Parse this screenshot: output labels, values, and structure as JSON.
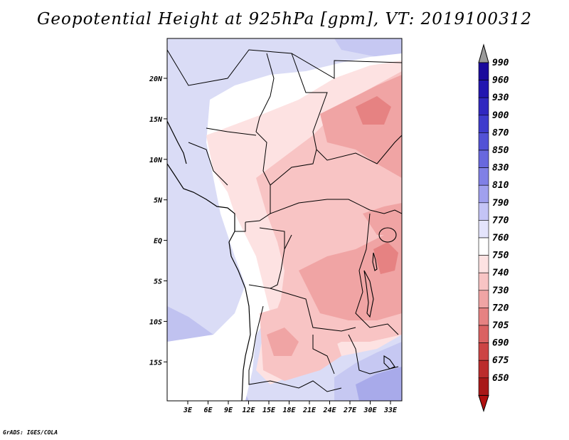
{
  "title": "Geopotential Height at 925hPa [gpm], VT: 2019100312",
  "credit": "GrADS: IGES/COLA",
  "map": {
    "lat_ticks": [
      "20N",
      "15N",
      "10N",
      "5N",
      "EQ",
      "5S",
      "10S",
      "15S"
    ],
    "lon_ticks": [
      "3E",
      "6E",
      "9E",
      "12E",
      "15E",
      "18E",
      "21E",
      "24E",
      "27E",
      "30E",
      "33E"
    ]
  },
  "colorbar": {
    "labels": [
      "990",
      "960",
      "930",
      "900",
      "870",
      "850",
      "830",
      "810",
      "790",
      "770",
      "760",
      "750",
      "740",
      "730",
      "720",
      "705",
      "690",
      "675",
      "650"
    ],
    "colors": [
      "#1a0a9c",
      "#2216b0",
      "#3028c0",
      "#3e3ccc",
      "#5252d6",
      "#6868de",
      "#8080e6",
      "#a0a0ee",
      "#c4c4f6",
      "#e4e4fc",
      "#ffffff",
      "#fde2e2",
      "#f8c4c4",
      "#f0a4a4",
      "#e68282",
      "#da6262",
      "#cc4444",
      "#bb2c2c",
      "#a81818"
    ],
    "top_arrow_color": "#9a9a9a",
    "bottom_arrow_color": "#b01010"
  }
}
